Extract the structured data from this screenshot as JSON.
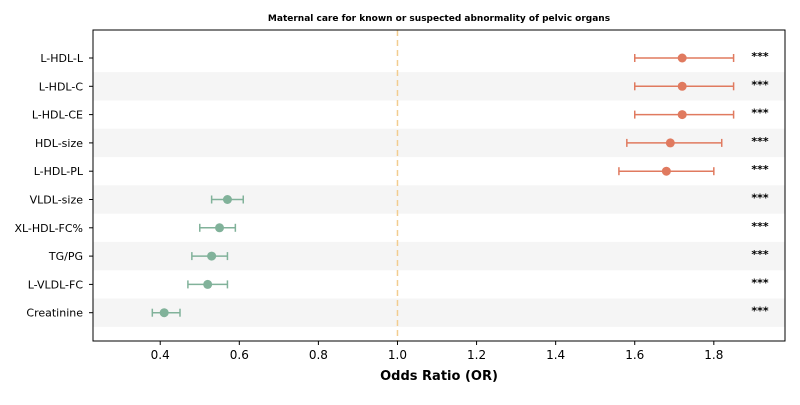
{
  "chart_data": {
    "type": "forest",
    "title": "Maternal care for known or suspected abnormality of pelvic organs",
    "xlabel": "Odds Ratio (OR)",
    "xlim": [
      0.23,
      1.98
    ],
    "xticks": [
      0.4,
      0.6,
      0.8,
      1.0,
      1.2,
      1.4,
      1.6,
      1.8
    ],
    "xtick_labels": [
      "0.4",
      "0.6",
      "0.8",
      "1.0",
      "1.2",
      "1.4",
      "1.6",
      "1.8"
    ],
    "reference_line": 1.0,
    "grid": false,
    "row_shading": "alternating",
    "rows": [
      {
        "label": "L-HDL-L",
        "or": 1.72,
        "ci_low": 1.6,
        "ci_high": 1.85,
        "sig": "***",
        "direction": "risk"
      },
      {
        "label": "L-HDL-C",
        "or": 1.72,
        "ci_low": 1.6,
        "ci_high": 1.85,
        "sig": "***",
        "direction": "risk"
      },
      {
        "label": "L-HDL-CE",
        "or": 1.72,
        "ci_low": 1.6,
        "ci_high": 1.85,
        "sig": "***",
        "direction": "risk"
      },
      {
        "label": "HDL-size",
        "or": 1.69,
        "ci_low": 1.58,
        "ci_high": 1.82,
        "sig": "***",
        "direction": "risk"
      },
      {
        "label": "L-HDL-PL",
        "or": 1.68,
        "ci_low": 1.56,
        "ci_high": 1.8,
        "sig": "***",
        "direction": "risk"
      },
      {
        "label": "VLDL-size",
        "or": 0.57,
        "ci_low": 0.53,
        "ci_high": 0.61,
        "sig": "***",
        "direction": "protective"
      },
      {
        "label": "XL-HDL-FC%",
        "or": 0.55,
        "ci_low": 0.5,
        "ci_high": 0.59,
        "sig": "***",
        "direction": "protective"
      },
      {
        "label": "TG/PG",
        "or": 0.53,
        "ci_low": 0.48,
        "ci_high": 0.57,
        "sig": "***",
        "direction": "protective"
      },
      {
        "label": "L-VLDL-FC",
        "or": 0.52,
        "ci_low": 0.47,
        "ci_high": 0.57,
        "sig": "***",
        "direction": "protective"
      },
      {
        "label": "Creatinine",
        "or": 0.41,
        "ci_low": 0.38,
        "ci_high": 0.45,
        "sig": "***",
        "direction": "protective"
      }
    ]
  },
  "colors": {
    "risk": "#E07A5F",
    "protective": "#81B29A",
    "reference_line": "#F2CC8F",
    "row_shade": "#f5f5f5"
  }
}
